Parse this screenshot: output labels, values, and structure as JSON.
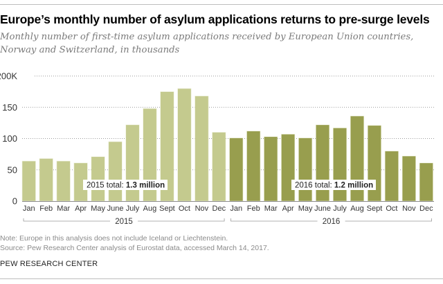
{
  "title": "Europe’s monthly number of asylum applications returns to pre-surge levels",
  "subtitle": "Monthly number of first-time asylum applications received by European Union countries, Norway and Switzerland, in thousands",
  "footer": {
    "note": "Note: Europe in this analysis does not include Iceland or Liechtenstein.",
    "source": "Source: Pew Research Center analysis of Eurostat data, accessed March 14, 2017.",
    "brand": "PEW RESEARCH CENTER"
  },
  "colors": {
    "year_2015": "#c4ca8e",
    "year_2016": "#989e4e"
  },
  "chart_data": {
    "type": "bar",
    "title": "Europe’s monthly number of asylum applications returns to pre-surge levels",
    "xlabel": "",
    "ylabel": "",
    "ylim": [
      0,
      200
    ],
    "yticks": [
      0,
      50,
      100,
      150,
      200
    ],
    "ytick_labels": [
      "0",
      "50",
      "100",
      "150",
      "200K"
    ],
    "grid": true,
    "categories": [
      "Jan",
      "Feb",
      "Mar",
      "Apr",
      "May",
      "June",
      "July",
      "Aug",
      "Sept",
      "Oct",
      "Nov",
      "Dec",
      "Jan",
      "Feb",
      "Mar",
      "Apr",
      "May",
      "June",
      "July",
      "Aug",
      "Sept",
      "Oct",
      "Nov",
      "Dec"
    ],
    "series": [
      {
        "name": "2015",
        "values": [
          64,
          68,
          64,
          61,
          71,
          95,
          122,
          148,
          175,
          180,
          168,
          110
        ],
        "annotation": {
          "label": "2015 total: ",
          "value": "1.3 million"
        }
      },
      {
        "name": "2016",
        "values": [
          101,
          112,
          103,
          107,
          101,
          122,
          117,
          136,
          121,
          80,
          72,
          61
        ],
        "annotation": {
          "label": "2016 total: ",
          "value": "1.2 million"
        }
      }
    ],
    "year_groups": [
      "2015",
      "2016"
    ]
  }
}
